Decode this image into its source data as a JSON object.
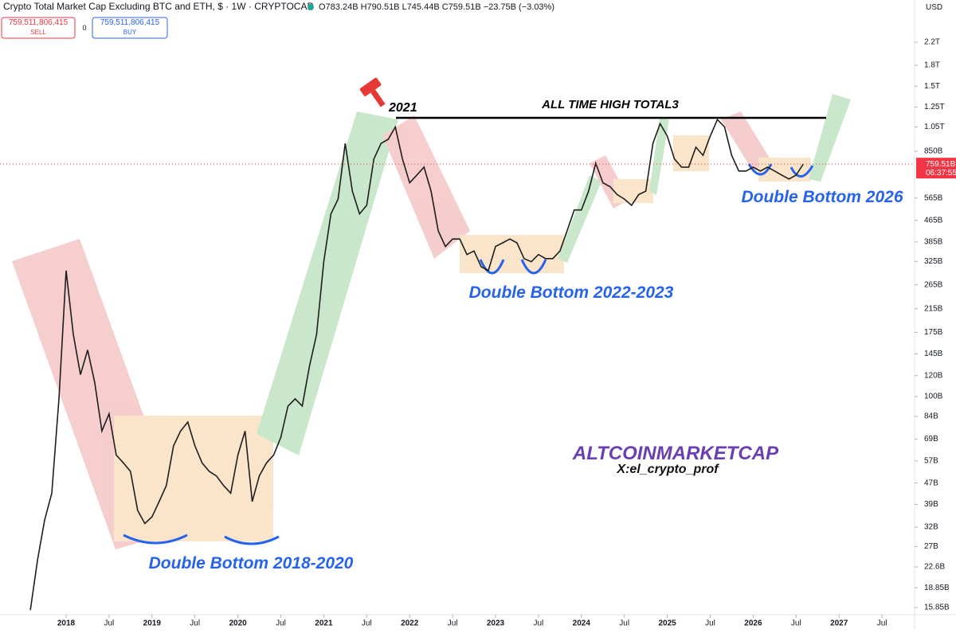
{
  "toolbar": {
    "symbol": "Crypto Total Market Cap Excluding BTC and ETH, $ · 1W · CRYPTOCAP",
    "ohlc": "O783.24B H790.51B L745.44B C759.51B −23.75B (−3.03%)",
    "sell_price": "759,511,806,415",
    "sell": "SELL",
    "spread": "0",
    "buy_price": "759,511,806,415",
    "buy": "BUY",
    "currency": "USD",
    "countdown": "06:37:55"
  },
  "chart_data": {
    "type": "line",
    "log_scale": true,
    "annotations": [
      "2021",
      "ALL TIME HIGH TOTAL3",
      "Double Bottom 2018-2020",
      "Double Bottom 2022-2023",
      "Double Bottom 2026",
      "ALTCOINMARKETCAP",
      "X:el_crypto_prof"
    ],
    "last_price": {
      "value": 759.51,
      "label": "759.51B"
    },
    "x": [
      "2017-08",
      "2017-09",
      "2017-10",
      "2017-11",
      "2017-12",
      "2018-01",
      "2018-02",
      "2018-03",
      "2018-04",
      "2018-05",
      "2018-06",
      "2018-07",
      "2018-08",
      "2018-09",
      "2018-10",
      "2018-11",
      "2018-12",
      "2019-01",
      "2019-02",
      "2019-03",
      "2019-04",
      "2019-05",
      "2019-06",
      "2019-07",
      "2019-08",
      "2019-09",
      "2019-10",
      "2019-11",
      "2019-12",
      "2020-01",
      "2020-02",
      "2020-03",
      "2020-04",
      "2020-05",
      "2020-06",
      "2020-07",
      "2020-08",
      "2020-09",
      "2020-10",
      "2020-11",
      "2020-12",
      "2021-01",
      "2021-02",
      "2021-03",
      "2021-04",
      "2021-05",
      "2021-06",
      "2021-07",
      "2021-08",
      "2021-09",
      "2021-10",
      "2021-11",
      "2021-12",
      "2022-01",
      "2022-02",
      "2022-03",
      "2022-04",
      "2022-05",
      "2022-06",
      "2022-07",
      "2022-08",
      "2022-09",
      "2022-10",
      "2022-11",
      "2022-12",
      "2023-01",
      "2023-02",
      "2023-03",
      "2023-04",
      "2023-05",
      "2023-06",
      "2023-07",
      "2023-08",
      "2023-09",
      "2023-10",
      "2023-11",
      "2023-12",
      "2024-01",
      "2024-02",
      "2024-03",
      "2024-04",
      "2024-05",
      "2024-06",
      "2024-07",
      "2024-08",
      "2024-09",
      "2024-10",
      "2024-11",
      "2024-12",
      "2025-01",
      "2025-02",
      "2025-03",
      "2025-04",
      "2025-05",
      "2025-06",
      "2025-07",
      "2025-08",
      "2025-09",
      "2025-10",
      "2025-11",
      "2025-12",
      "2026-01",
      "2026-02",
      "2026-03",
      "2026-04",
      "2026-05",
      "2026-06",
      "2026-07",
      "2026-08"
    ],
    "series": [
      {
        "name": "TOTAL3",
        "color": "#1e1e1e",
        "values": [
          15.5,
          24,
          34,
          43,
          98,
          300,
          172,
          121,
          150,
          113,
          74,
          86,
          60,
          56,
          52,
          37,
          33,
          35,
          40,
          46,
          65,
          74,
          80,
          65,
          56,
          52,
          50,
          46,
          43,
          60,
          74,
          40,
          50,
          56,
          60,
          70,
          92,
          98,
          92,
          130,
          172,
          324,
          492,
          560,
          910,
          600,
          492,
          530,
          794,
          910,
          943,
          1050,
          794,
          645,
          690,
          740,
          600,
          424,
          370,
          395,
          395,
          345,
          356,
          310,
          300,
          370,
          382,
          395,
          382,
          333,
          324,
          345,
          333,
          333,
          356,
          424,
          509,
          509,
          600,
          766,
          645,
          624,
          582,
          560,
          530,
          582,
          600,
          910,
          1080,
          970,
          794,
          740,
          740,
          880,
          820,
          970,
          1120,
          1050,
          820,
          715,
          715,
          740,
          715,
          740,
          715,
          690,
          667,
          690,
          760
        ]
      }
    ],
    "ylim": [
      14.9,
      3180
    ],
    "yticks": [
      {
        "value": 2200,
        "label": "2.2T"
      },
      {
        "value": 1800,
        "label": "1.8T"
      },
      {
        "value": 1500,
        "label": "1.5T"
      },
      {
        "value": 1250,
        "label": "1.25T"
      },
      {
        "value": 1050,
        "label": "1.05T"
      },
      {
        "value": 850,
        "label": "850B"
      },
      {
        "value": 565,
        "label": "565B"
      },
      {
        "value": 465,
        "label": "465B"
      },
      {
        "value": 385,
        "label": "385B"
      },
      {
        "value": 325,
        "label": "325B"
      },
      {
        "value": 265,
        "label": "265B"
      },
      {
        "value": 215,
        "label": "215B"
      },
      {
        "value": 175,
        "label": "175B"
      },
      {
        "value": 145,
        "label": "145B"
      },
      {
        "value": 120,
        "label": "120B"
      },
      {
        "value": 100,
        "label": "100B"
      },
      {
        "value": 84,
        "label": "84B"
      },
      {
        "value": 69,
        "label": "69B"
      },
      {
        "value": 57,
        "label": "57B"
      },
      {
        "value": 47,
        "label": "47B"
      },
      {
        "value": 39,
        "label": "39B"
      },
      {
        "value": 32,
        "label": "32B"
      },
      {
        "value": 27,
        "label": "27B"
      },
      {
        "value": 22.6,
        "label": "22.6B"
      },
      {
        "value": 18.85,
        "label": "18.85B"
      },
      {
        "value": 15.85,
        "label": "15.85B"
      }
    ],
    "xticks": [
      {
        "value": "2018-01",
        "label": "2018"
      },
      {
        "value": "2018-07",
        "label": "Jul"
      },
      {
        "value": "2019-01",
        "label": "2019"
      },
      {
        "value": "2019-07",
        "label": "Jul"
      },
      {
        "value": "2020-01",
        "label": "2020"
      },
      {
        "value": "2020-07",
        "label": "Jul"
      },
      {
        "value": "2021-01",
        "label": "2021"
      },
      {
        "value": "2021-07",
        "label": "Jul"
      },
      {
        "value": "2022-01",
        "label": "2022"
      },
      {
        "value": "2022-07",
        "label": "Jul"
      },
      {
        "value": "2023-01",
        "label": "2023"
      },
      {
        "value": "2023-07",
        "label": "Jul"
      },
      {
        "value": "2024-01",
        "label": "2024"
      },
      {
        "value": "2024-07",
        "label": "Jul"
      },
      {
        "value": "2025-01",
        "label": "2025"
      },
      {
        "value": "2025-07",
        "label": "Jul"
      },
      {
        "value": "2026-01",
        "label": "2026"
      },
      {
        "value": "2026-07",
        "label": "Jul"
      },
      {
        "value": "2027-01",
        "label": "2027"
      },
      {
        "value": "2027-07",
        "label": "Jul"
      }
    ]
  }
}
